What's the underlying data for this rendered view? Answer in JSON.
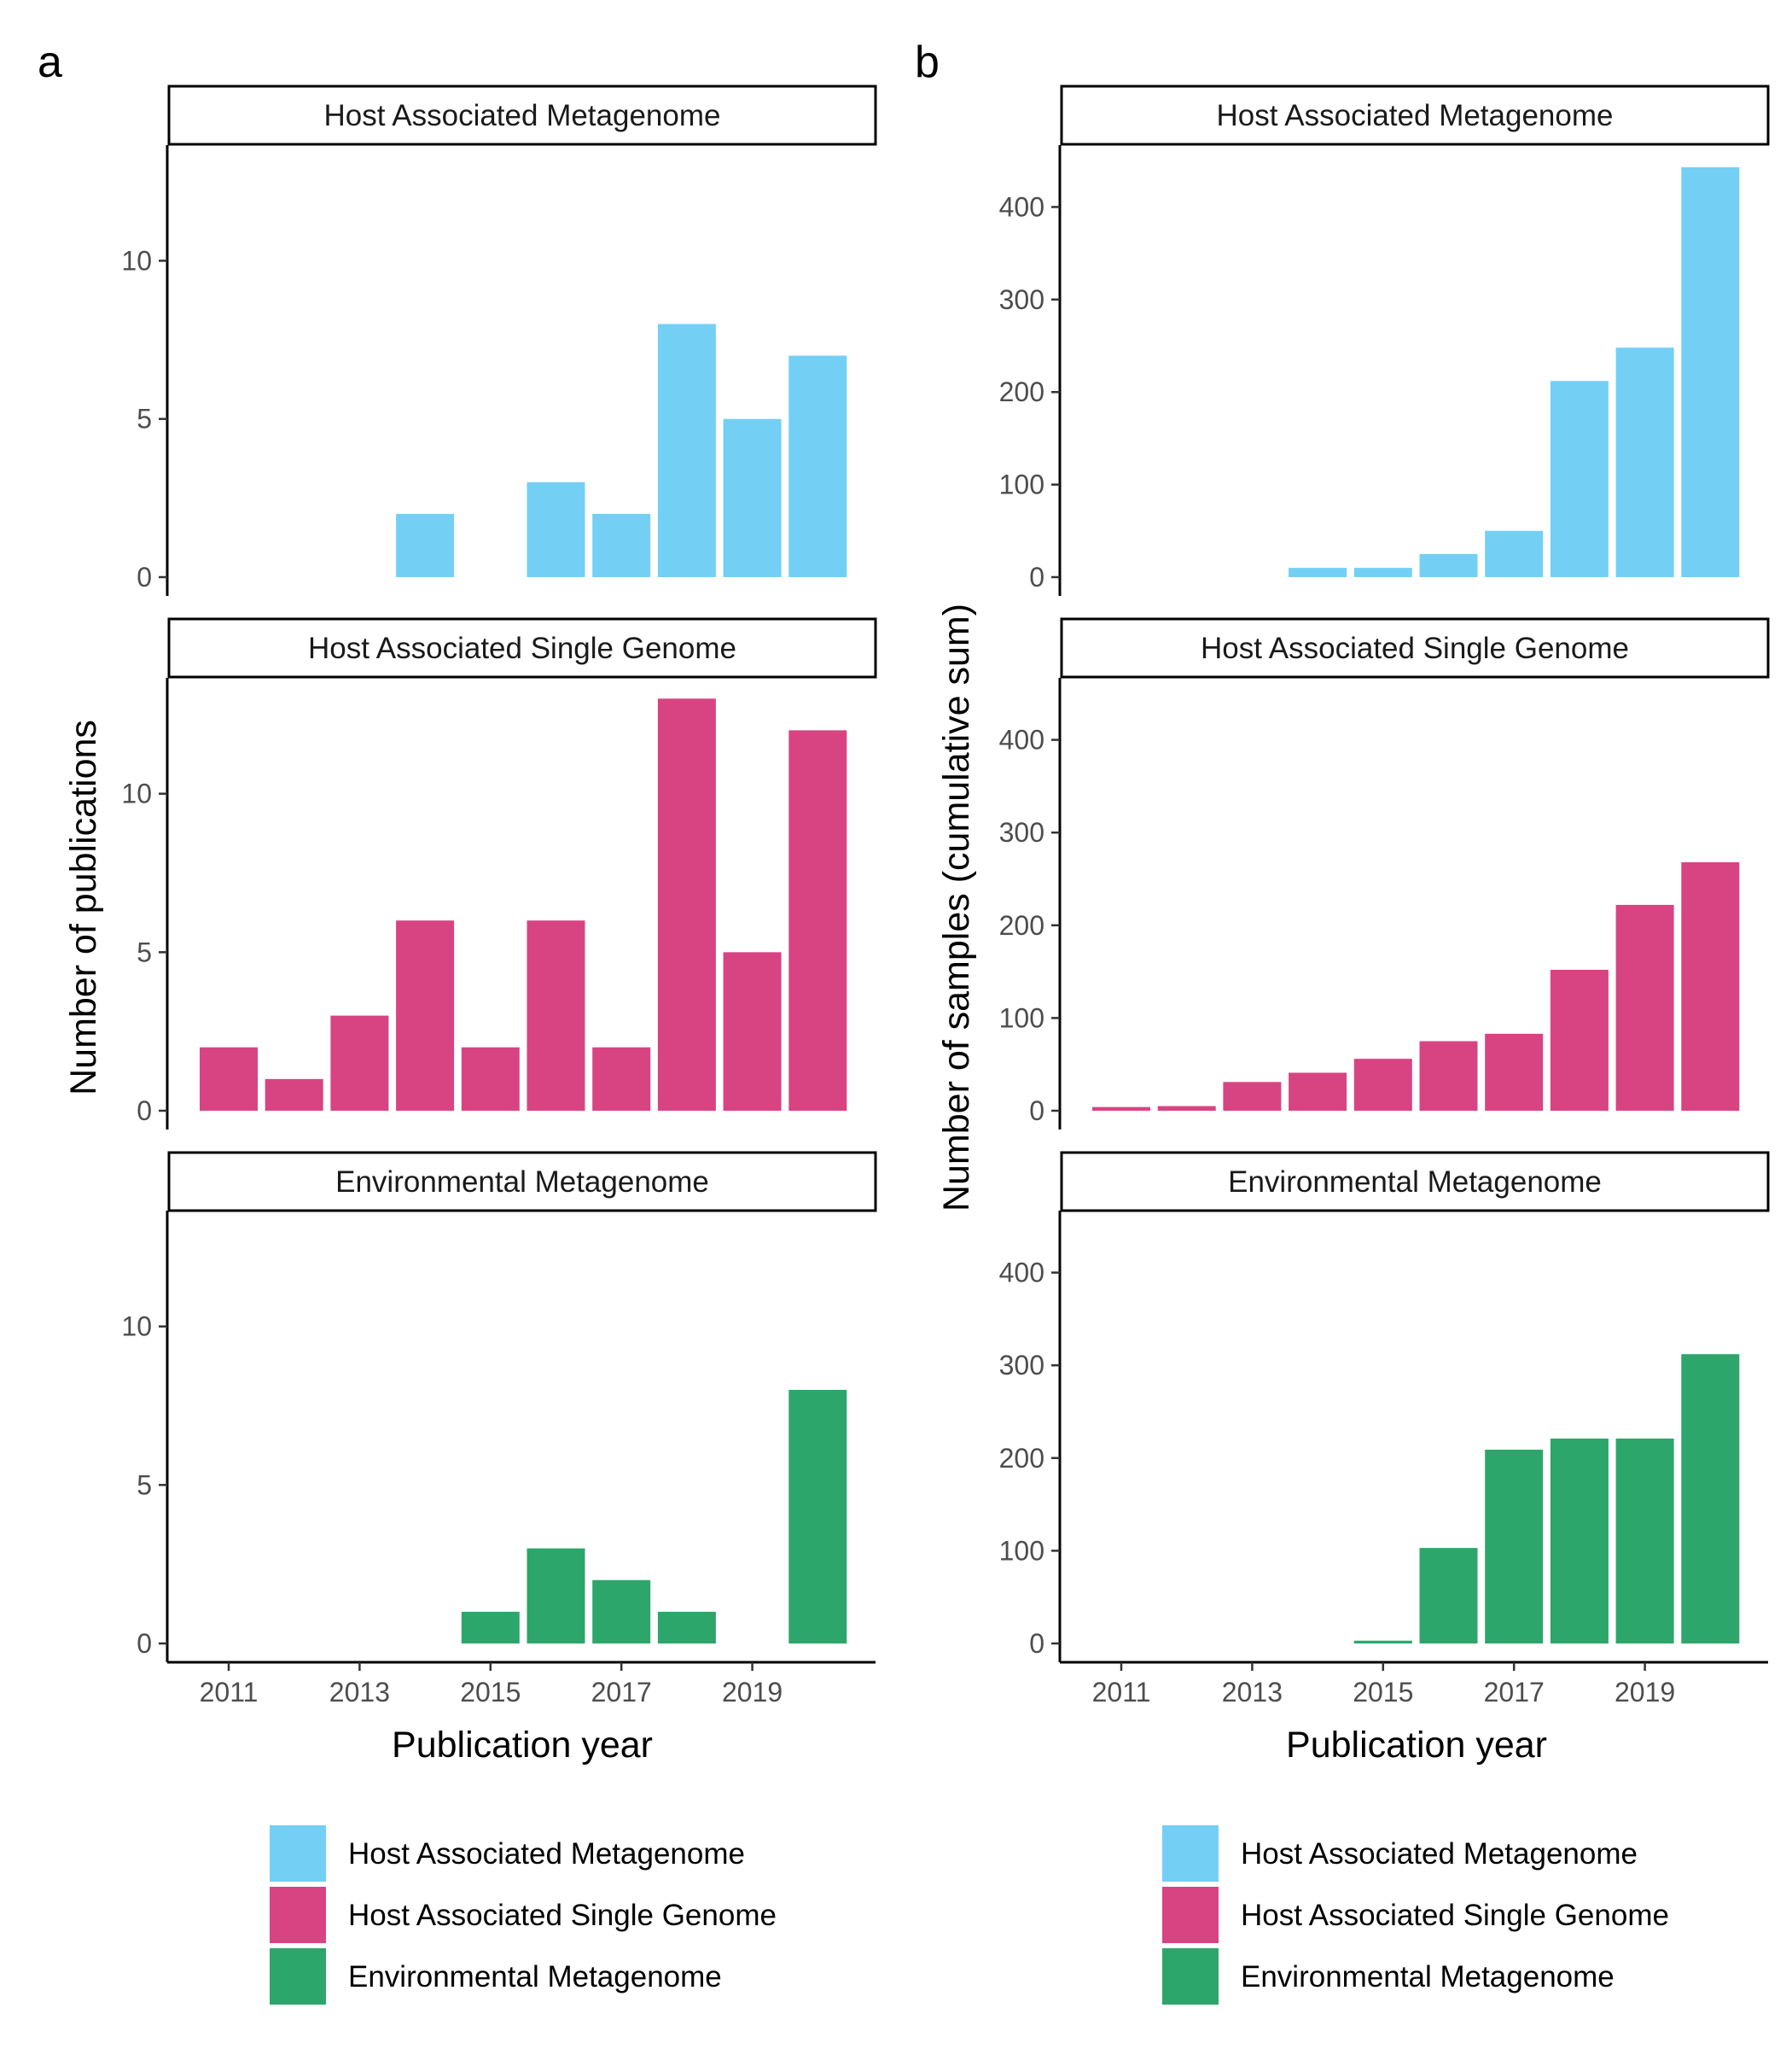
{
  "colors": {
    "host_metagenome": "#74CFF5",
    "host_single_genome": "#D84482",
    "environmental_metagenome": "#2DA66B",
    "axis": "#000000",
    "tick_text": "#4d4d4d"
  },
  "panels": {
    "a": {
      "letter": "a",
      "ylabel": "Number of publications",
      "xlabel": "Publication year"
    },
    "b": {
      "letter": "b",
      "ylabel": "Number of samples (cumulative sum)",
      "xlabel": "Publication year"
    }
  },
  "legend": [
    {
      "label": "Host Associated Metagenome",
      "color": "#74CFF5"
    },
    {
      "label": "Host Associated Single Genome",
      "color": "#D84482"
    },
    {
      "label": "Environmental Metagenome",
      "color": "#2DA66B"
    }
  ],
  "chart_data": [
    {
      "type": "bar",
      "panel": "a",
      "facet": "Host Associated Metagenome",
      "x": [
        2011,
        2012,
        2013,
        2014,
        2015,
        2016,
        2017,
        2018,
        2019,
        2020
      ],
      "values": [
        0,
        0,
        0,
        2,
        0,
        3,
        2,
        8,
        5,
        7
      ],
      "xlabel": "Publication year",
      "ylabel": "Number of publications",
      "ylim": [
        0,
        13.6
      ],
      "yticks": [
        0,
        5,
        10
      ],
      "xticks": [
        2011,
        2013,
        2015,
        2017,
        2019
      ],
      "color": "#74CFF5"
    },
    {
      "type": "bar",
      "panel": "a",
      "facet": "Host Associated Single Genome",
      "x": [
        2011,
        2012,
        2013,
        2014,
        2015,
        2016,
        2017,
        2018,
        2019,
        2020
      ],
      "values": [
        2,
        1,
        3,
        6,
        2,
        6,
        2,
        13,
        5,
        12
      ],
      "xlabel": "Publication year",
      "ylabel": "Number of publications",
      "ylim": [
        0,
        13.6
      ],
      "yticks": [
        0,
        5,
        10
      ],
      "xticks": [
        2011,
        2013,
        2015,
        2017,
        2019
      ],
      "color": "#D84482"
    },
    {
      "type": "bar",
      "panel": "a",
      "facet": "Environmental Metagenome",
      "x": [
        2011,
        2012,
        2013,
        2014,
        2015,
        2016,
        2017,
        2018,
        2019,
        2020
      ],
      "values": [
        0,
        0,
        0,
        0,
        1,
        3,
        2,
        1,
        0,
        8
      ],
      "xlabel": "Publication year",
      "ylabel": "Number of publications",
      "ylim": [
        0,
        13.6
      ],
      "yticks": [
        0,
        5,
        10
      ],
      "xticks": [
        2011,
        2013,
        2015,
        2017,
        2019
      ],
      "color": "#2DA66B"
    },
    {
      "type": "bar",
      "panel": "b",
      "facet": "Host Associated Metagenome",
      "x": [
        2011,
        2012,
        2013,
        2014,
        2015,
        2016,
        2017,
        2018,
        2019,
        2020
      ],
      "values": [
        0,
        0,
        0,
        10,
        10,
        25,
        50,
        212,
        248,
        443
      ],
      "xlabel": "Publication year",
      "ylabel": "Number of samples (cumulative sum)",
      "ylim": [
        0,
        465
      ],
      "yticks": [
        0,
        100,
        200,
        300,
        400
      ],
      "xticks": [
        2011,
        2013,
        2015,
        2017,
        2019
      ],
      "color": "#74CFF5"
    },
    {
      "type": "bar",
      "panel": "b",
      "facet": "Host Associated Single Genome",
      "x": [
        2011,
        2012,
        2013,
        2014,
        2015,
        2016,
        2017,
        2018,
        2019,
        2020
      ],
      "values": [
        4,
        5,
        31,
        41,
        56,
        75,
        83,
        152,
        222,
        268
      ],
      "xlabel": "Publication year",
      "ylabel": "Number of samples (cumulative sum)",
      "ylim": [
        0,
        465
      ],
      "yticks": [
        0,
        100,
        200,
        300,
        400
      ],
      "xticks": [
        2011,
        2013,
        2015,
        2017,
        2019
      ],
      "color": "#D84482"
    },
    {
      "type": "bar",
      "panel": "b",
      "facet": "Environmental Metagenome",
      "x": [
        2011,
        2012,
        2013,
        2014,
        2015,
        2016,
        2017,
        2018,
        2019,
        2020
      ],
      "values": [
        0,
        0,
        0,
        0,
        3,
        103,
        209,
        221,
        221,
        312
      ],
      "xlabel": "Publication year",
      "ylabel": "Number of samples (cumulative sum)",
      "ylim": [
        0,
        465
      ],
      "yticks": [
        0,
        100,
        200,
        300,
        400
      ],
      "xticks": [
        2011,
        2013,
        2015,
        2017,
        2019
      ],
      "color": "#2DA66B"
    }
  ]
}
